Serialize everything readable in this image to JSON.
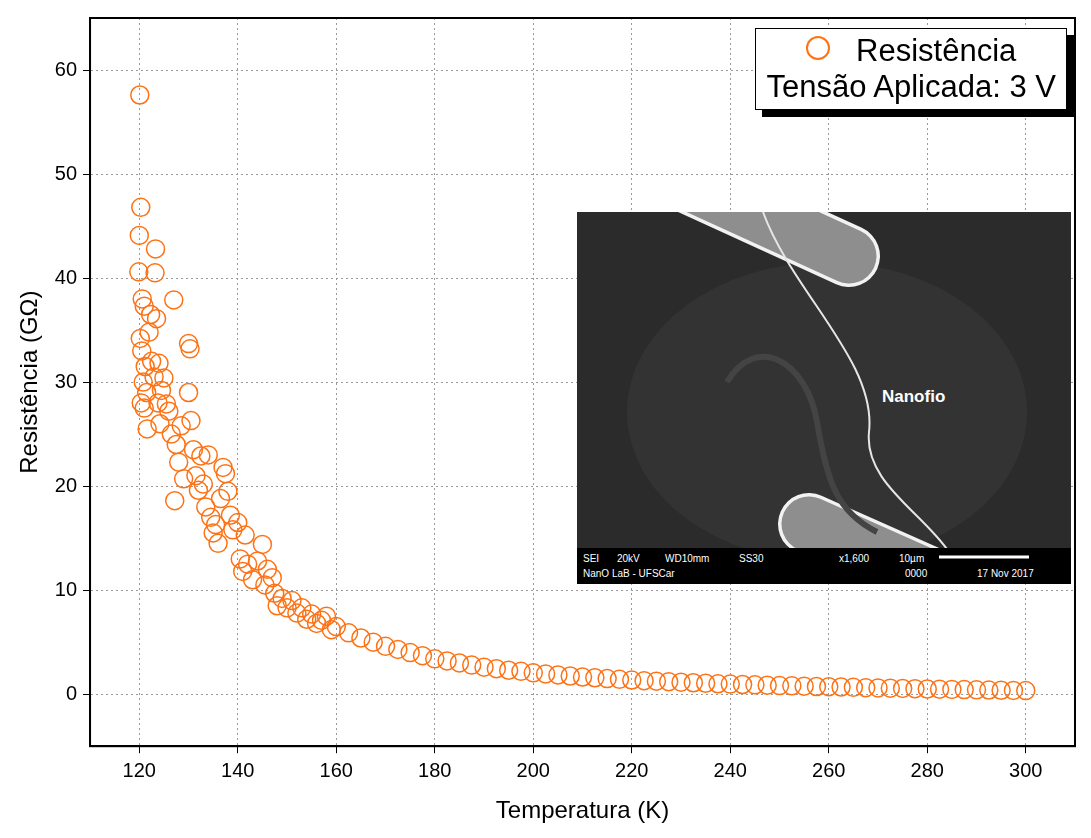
{
  "chart_data": {
    "type": "scatter",
    "x_label": "Temperatura (K)",
    "y_label": "Resistência (GΩ)",
    "x": [
      120.1,
      120.3,
      120.0,
      119.9,
      120.6,
      121.0,
      120.2,
      120.5,
      121.2,
      120.8,
      121.5,
      120.4,
      121.0,
      121.6,
      122.0,
      122.3,
      123.3,
      123.2,
      123.5,
      122.5,
      123.0,
      124.0,
      124.5,
      123.8,
      124.2,
      125.0,
      125.5,
      126.0,
      127.0,
      126.5,
      127.5,
      128.0,
      128.5,
      129.0,
      127.2,
      130.0,
      130.3,
      130.0,
      130.5,
      131.0,
      131.5,
      132.0,
      132.5,
      133.0,
      133.5,
      134.0,
      134.5,
      135.0,
      135.5,
      136.0,
      136.5,
      137.0,
      137.5,
      138.0,
      138.5,
      139.0,
      140.0,
      140.5,
      141.0,
      141.5,
      142.0,
      143.0,
      144.0,
      145.0,
      145.5,
      146.0,
      147.0,
      147.5,
      148.0,
      149.0,
      150,
      151,
      152,
      153,
      154,
      155,
      156,
      157,
      158,
      159,
      160,
      162.5,
      165,
      167.5,
      170,
      172.5,
      175,
      177.5,
      180,
      182.5,
      185,
      187.5,
      190,
      192.5,
      195,
      197.5,
      200,
      202.5,
      205,
      207.5,
      210,
      212.5,
      215,
      217.5,
      220,
      222.5,
      225,
      227.5,
      230,
      232.5,
      235,
      237.5,
      240,
      242.5,
      245,
      247.5,
      250,
      252.5,
      255,
      257.5,
      260,
      262.5,
      265,
      267.5,
      270,
      272.5,
      275,
      277.5,
      280,
      282.5,
      285,
      287.5,
      290,
      292.5,
      295,
      297.5,
      300
    ],
    "series": [
      {
        "name": "Resistência",
        "color": "#ff7214",
        "marker": "circle_open",
        "values": [
          57.6,
          46.8,
          44.1,
          40.6,
          38.0,
          37.3,
          34.2,
          33.0,
          31.5,
          30.0,
          29.0,
          28.0,
          27.5,
          25.5,
          34.8,
          36.5,
          42.8,
          40.5,
          36.1,
          32.0,
          30.5,
          31.8,
          29.2,
          28.0,
          26.0,
          30.4,
          27.9,
          27.2,
          37.9,
          25.0,
          24.0,
          22.3,
          25.8,
          20.7,
          18.6,
          33.7,
          33.2,
          29.0,
          26.3,
          23.5,
          21.0,
          19.6,
          22.9,
          20.2,
          18.0,
          23.0,
          17.0,
          15.5,
          16.3,
          14.5,
          18.8,
          21.8,
          21.2,
          19.5,
          17.2,
          15.8,
          16.5,
          13.0,
          11.8,
          15.3,
          12.5,
          11.0,
          12.8,
          14.4,
          10.5,
          12.0,
          11.2,
          9.7,
          8.5,
          9.2,
          8.3,
          9.0,
          7.8,
          8.3,
          7.2,
          7.7,
          6.8,
          7.1,
          7.5,
          6.2,
          6.5,
          5.9,
          5.4,
          5.0,
          4.6,
          4.3,
          4.0,
          3.7,
          3.4,
          3.2,
          3.0,
          2.8,
          2.6,
          2.45,
          2.3,
          2.2,
          2.05,
          1.95,
          1.85,
          1.75,
          1.65,
          1.58,
          1.5,
          1.43,
          1.36,
          1.3,
          1.25,
          1.2,
          1.15,
          1.1,
          1.05,
          1.0,
          0.97,
          0.93,
          0.9,
          0.86,
          0.83,
          0.8,
          0.77,
          0.74,
          0.72,
          0.69,
          0.66,
          0.63,
          0.6,
          0.58,
          0.55,
          0.53,
          0.5,
          0.48,
          0.46,
          0.44,
          0.42,
          0.4,
          0.38,
          0.36,
          0.35
        ]
      }
    ],
    "xlim": [
      110,
      310
    ],
    "ylim": [
      -5,
      65
    ],
    "xticks": [
      120,
      140,
      160,
      180,
      200,
      220,
      240,
      260,
      280,
      300
    ],
    "yticks": [
      0,
      10,
      20,
      30,
      40,
      50,
      60
    ],
    "grid": true,
    "legend": "upper right",
    "annotations": [
      "Tensão Aplicada: 3 V"
    ],
    "inset": {
      "label": "Nanofio",
      "info_bar": {
        "row1": [
          "SEI",
          "20kV",
          "WD10mm",
          "SS30",
          "x1,600",
          "10µm"
        ],
        "row2": [
          "NanO LaB - UFSCar",
          "0000",
          "17 Nov 2017"
        ]
      }
    }
  }
}
